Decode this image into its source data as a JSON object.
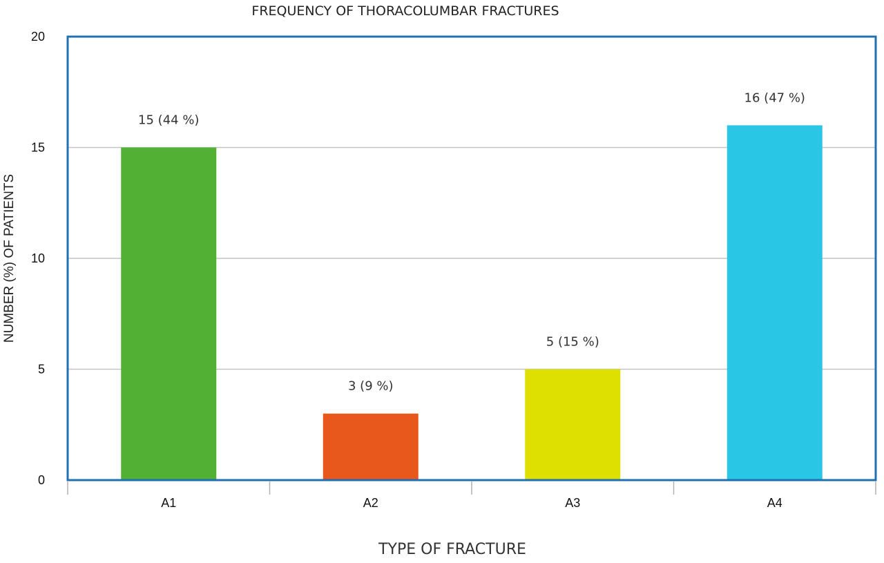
{
  "chart_data": {
    "type": "bar",
    "title": "FREQUENCY OF THORACOLUMBAR FRACTURES",
    "xlabel": "TYPE OF FRACTURE",
    "ylabel": "NUMBER (%) OF PATIENTS",
    "categories": [
      "A1",
      "A2",
      "A3",
      "A4"
    ],
    "values": [
      15,
      3,
      5,
      16
    ],
    "data_labels": [
      "15 (44 %)",
      "3 (9 %)",
      "5 (15 %)",
      "16 (47 %)"
    ],
    "colors": [
      "#52b135",
      "#e8571c",
      "#dde000",
      "#29c7e5"
    ],
    "ylim": [
      0,
      20
    ],
    "yticks": [
      "0",
      "5",
      "10",
      "15",
      "20"
    ],
    "grid": true,
    "legend": "none",
    "frame_color": "#1f6fb2",
    "grid_color": "#c4c4c4"
  }
}
